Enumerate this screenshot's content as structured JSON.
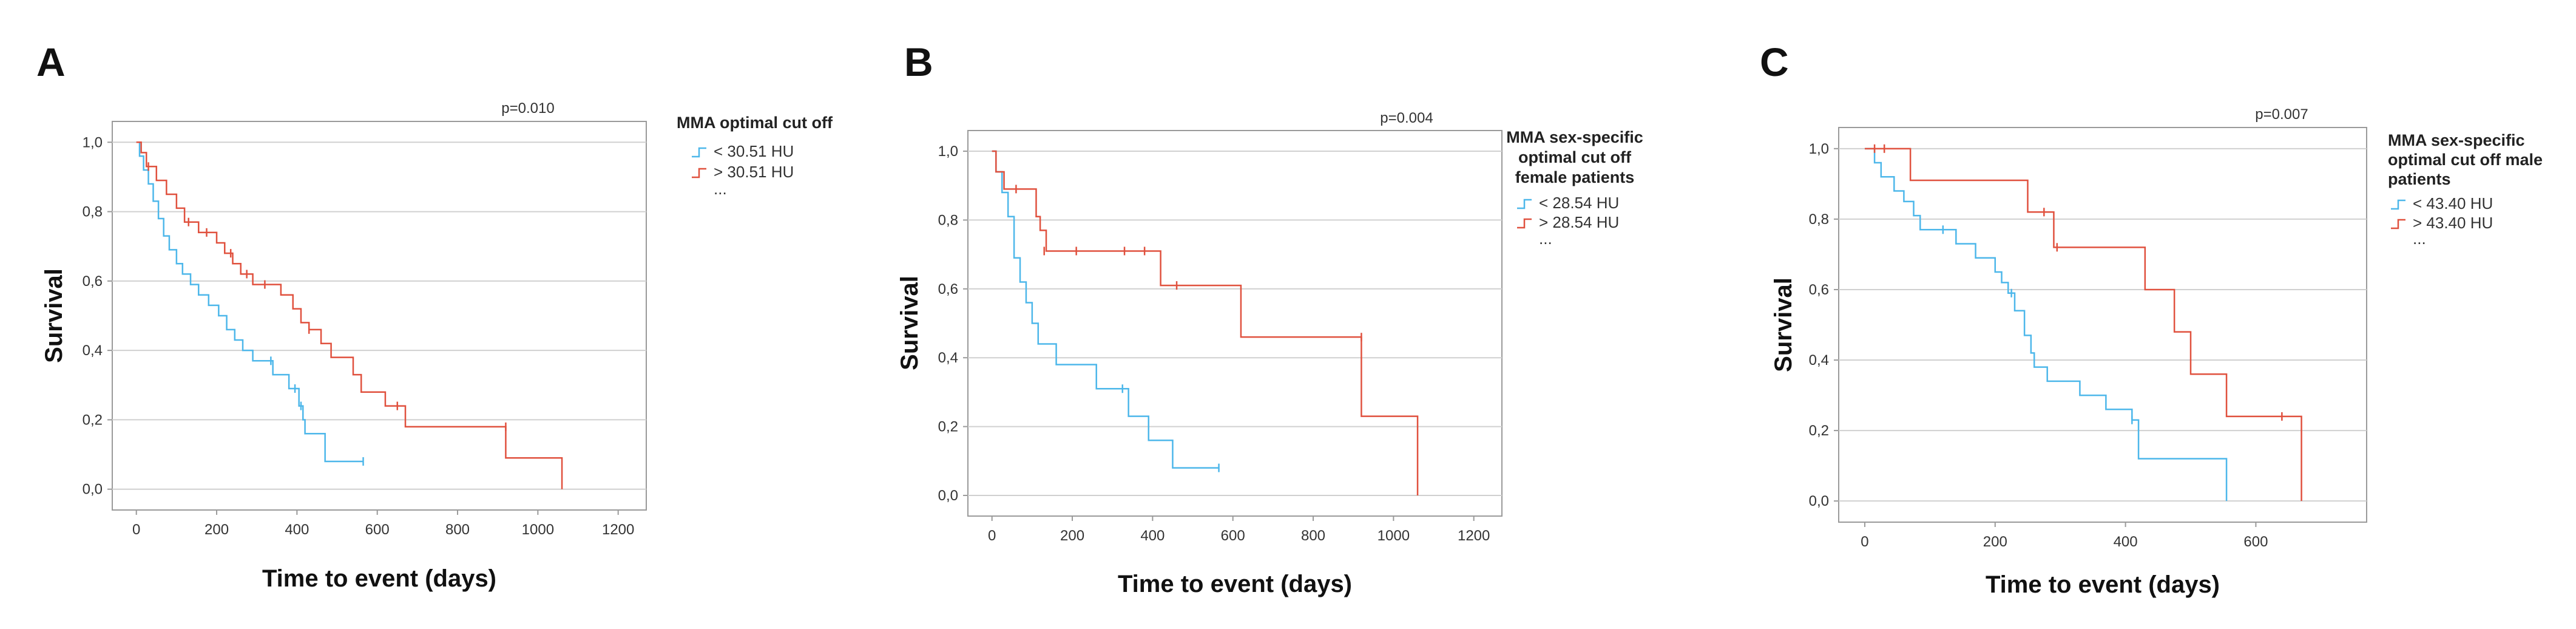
{
  "colors": {
    "blue": "#4db7ea",
    "red": "#e0513e",
    "grid": "#d0d0d0",
    "axis": "#9a9a9a"
  },
  "chart_data": [
    {
      "type": "line",
      "panel_label": "A",
      "xlabel": "Time to event (days)",
      "ylabel": "Survival",
      "xlim": [
        -60,
        1270
      ],
      "ylim": [
        -0.06,
        1.06
      ],
      "xticks": [
        0,
        200,
        400,
        600,
        800,
        1000,
        1200
      ],
      "xtick_labels": [
        "0",
        "200",
        "400",
        "600",
        "800",
        "1000",
        "1200"
      ],
      "yticks": [
        0.0,
        0.2,
        0.4,
        0.6,
        0.8,
        1.0
      ],
      "ytick_labels": [
        "0,0",
        "0,2",
        "0,4",
        "0,6",
        "0,8",
        "1,0"
      ],
      "p_value": "p=0.010",
      "legend_title": [
        "MMA optimal cut off"
      ],
      "legend_extra": "...",
      "series": [
        {
          "name": "< 30.51 HU",
          "color_key": "blue",
          "steps": [
            [
              0,
              1.0
            ],
            [
              8,
              0.96
            ],
            [
              18,
              0.92
            ],
            [
              30,
              0.88
            ],
            [
              42,
              0.83
            ],
            [
              55,
              0.78
            ],
            [
              68,
              0.73
            ],
            [
              82,
              0.69
            ],
            [
              100,
              0.65
            ],
            [
              115,
              0.62
            ],
            [
              135,
              0.59
            ],
            [
              155,
              0.56
            ],
            [
              180,
              0.53
            ],
            [
              205,
              0.5
            ],
            [
              225,
              0.46
            ],
            [
              245,
              0.43
            ],
            [
              265,
              0.4
            ],
            [
              290,
              0.37
            ],
            [
              340,
              0.33
            ],
            [
              380,
              0.29
            ],
            [
              405,
              0.24
            ],
            [
              415,
              0.2
            ],
            [
              420,
              0.16
            ],
            [
              470,
              0.08
            ],
            [
              565,
              0.08
            ]
          ],
          "censor": [
            [
              335,
              0.37
            ],
            [
              395,
              0.29
            ],
            [
              410,
              0.24
            ],
            [
              565,
              0.08
            ]
          ]
        },
        {
          "name": "> 30.51 HU",
          "color_key": "red",
          "steps": [
            [
              0,
              1.0
            ],
            [
              12,
              0.97
            ],
            [
              25,
              0.93
            ],
            [
              50,
              0.89
            ],
            [
              75,
              0.85
            ],
            [
              100,
              0.81
            ],
            [
              120,
              0.77
            ],
            [
              155,
              0.74
            ],
            [
              200,
              0.71
            ],
            [
              220,
              0.68
            ],
            [
              240,
              0.65
            ],
            [
              260,
              0.62
            ],
            [
              290,
              0.59
            ],
            [
              360,
              0.56
            ],
            [
              390,
              0.52
            ],
            [
              410,
              0.48
            ],
            [
              430,
              0.46
            ],
            [
              460,
              0.42
            ],
            [
              485,
              0.38
            ],
            [
              540,
              0.33
            ],
            [
              560,
              0.28
            ],
            [
              620,
              0.24
            ],
            [
              670,
              0.18
            ],
            [
              920,
              0.09
            ],
            [
              1060,
              0.0
            ]
          ],
          "censor": [
            [
              30,
              0.93
            ],
            [
              130,
              0.77
            ],
            [
              175,
              0.74
            ],
            [
              235,
              0.68
            ],
            [
              275,
              0.62
            ],
            [
              320,
              0.59
            ],
            [
              430,
              0.46
            ],
            [
              650,
              0.24
            ],
            [
              920,
              0.18
            ]
          ]
        }
      ]
    },
    {
      "type": "line",
      "panel_label": "B",
      "xlabel": "Time to event (days)",
      "ylabel": "Survival",
      "xlim": [
        -60,
        1270
      ],
      "ylim": [
        -0.06,
        1.06
      ],
      "xticks": [
        0,
        200,
        400,
        600,
        800,
        1000,
        1200
      ],
      "xtick_labels": [
        "0",
        "200",
        "400",
        "600",
        "800",
        "1000",
        "1200"
      ],
      "yticks": [
        0.0,
        0.2,
        0.4,
        0.6,
        0.8,
        1.0
      ],
      "ytick_labels": [
        "0,0",
        "0,2",
        "0,4",
        "0,6",
        "0,8",
        "1,0"
      ],
      "p_value": "p=0.004",
      "legend_title": [
        "MMA sex-specific",
        "optimal cut off",
        "female patients"
      ],
      "legend_extra": "...",
      "series": [
        {
          "name": "< 28.54 HU",
          "color_key": "blue",
          "steps": [
            [
              0,
              1.0
            ],
            [
              10,
              0.94
            ],
            [
              25,
              0.88
            ],
            [
              40,
              0.81
            ],
            [
              55,
              0.69
            ],
            [
              70,
              0.62
            ],
            [
              85,
              0.56
            ],
            [
              100,
              0.5
            ],
            [
              115,
              0.44
            ],
            [
              160,
              0.38
            ],
            [
              260,
              0.31
            ],
            [
              340,
              0.23
            ],
            [
              390,
              0.16
            ],
            [
              450,
              0.08
            ],
            [
              565,
              0.08
            ]
          ],
          "censor": [
            [
              325,
              0.31
            ],
            [
              565,
              0.08
            ]
          ]
        },
        {
          "name": "> 28.54 HU",
          "color_key": "red",
          "steps": [
            [
              0,
              1.0
            ],
            [
              10,
              0.94
            ],
            [
              30,
              0.89
            ],
            [
              110,
              0.81
            ],
            [
              120,
              0.77
            ],
            [
              135,
              0.71
            ],
            [
              420,
              0.61
            ],
            [
              620,
              0.46
            ],
            [
              920,
              0.23
            ],
            [
              1060,
              0.0
            ]
          ],
          "censor": [
            [
              60,
              0.89
            ],
            [
              130,
              0.71
            ],
            [
              210,
              0.71
            ],
            [
              330,
              0.71
            ],
            [
              380,
              0.71
            ],
            [
              460,
              0.61
            ],
            [
              920,
              0.46
            ]
          ]
        }
      ]
    },
    {
      "type": "line",
      "panel_label": "C",
      "xlabel": "Time to event (days)",
      "ylabel": "Survival",
      "xlim": [
        -40,
        770
      ],
      "ylim": [
        -0.06,
        1.06
      ],
      "xticks": [
        0,
        200,
        400,
        600
      ],
      "xtick_labels": [
        "0",
        "200",
        "400",
        "600"
      ],
      "yticks": [
        0.0,
        0.2,
        0.4,
        0.6,
        0.8,
        1.0
      ],
      "ytick_labels": [
        "0,0",
        "0,2",
        "0,4",
        "0,6",
        "0,8",
        "1,0"
      ],
      "p_value": "p=0.007",
      "legend_title": [
        "MMA sex-specific",
        "optimal cut off male",
        "patients"
      ],
      "legend_extra": "...",
      "series": [
        {
          "name": "< 43.40 HU",
          "color_key": "blue",
          "steps": [
            [
              0,
              1.0
            ],
            [
              15,
              0.96
            ],
            [
              25,
              0.92
            ],
            [
              45,
              0.88
            ],
            [
              60,
              0.85
            ],
            [
              75,
              0.81
            ],
            [
              85,
              0.77
            ],
            [
              140,
              0.73
            ],
            [
              170,
              0.69
            ],
            [
              200,
              0.65
            ],
            [
              210,
              0.62
            ],
            [
              220,
              0.59
            ],
            [
              230,
              0.54
            ],
            [
              245,
              0.47
            ],
            [
              255,
              0.42
            ],
            [
              260,
              0.38
            ],
            [
              280,
              0.34
            ],
            [
              330,
              0.3
            ],
            [
              370,
              0.26
            ],
            [
              410,
              0.23
            ],
            [
              420,
              0.12
            ],
            [
              555,
              0.0
            ]
          ],
          "censor": [
            [
              120,
              0.77
            ],
            [
              225,
              0.59
            ],
            [
              410,
              0.23
            ]
          ]
        },
        {
          "name": "> 43.40 HU",
          "color_key": "red",
          "steps": [
            [
              0,
              1.0
            ],
            [
              70,
              0.91
            ],
            [
              250,
              0.82
            ],
            [
              290,
              0.72
            ],
            [
              430,
              0.6
            ],
            [
              475,
              0.48
            ],
            [
              500,
              0.36
            ],
            [
              555,
              0.24
            ],
            [
              670,
              0.0
            ]
          ],
          "censor": [
            [
              15,
              1.0
            ],
            [
              30,
              1.0
            ],
            [
              275,
              0.82
            ],
            [
              295,
              0.72
            ],
            [
              640,
              0.24
            ]
          ]
        }
      ]
    }
  ]
}
